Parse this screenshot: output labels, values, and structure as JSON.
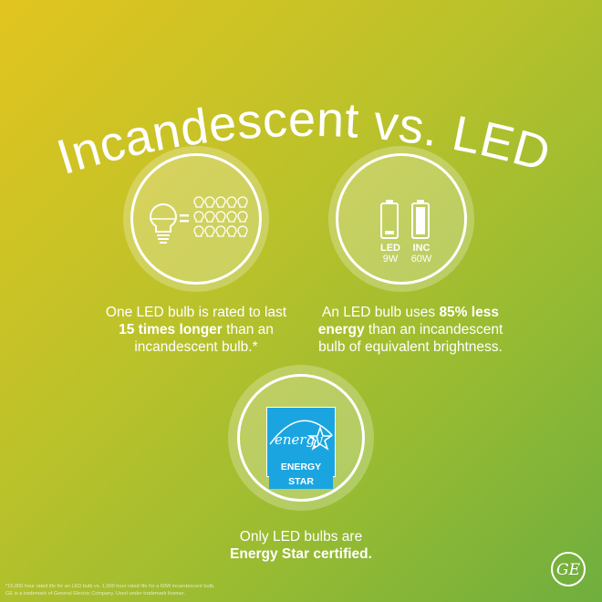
{
  "title": "Incandescent vs. LED",
  "cards": [
    {
      "icon": "bulb-equals-fifteen-bulbs-icon",
      "caption_pre": "One LED bulb is rated to last",
      "caption_bold": "15 times longer",
      "caption_post": " than an",
      "caption_line3": "incandescent bulb.*"
    },
    {
      "icon": "battery-comparison-icon",
      "led_label": "LED",
      "led_watt": "9W",
      "inc_label": "INC",
      "inc_watt": "60W",
      "caption_pre": "An LED bulb uses ",
      "caption_bold": "85% less",
      "caption_bold2": "energy",
      "caption_post": " than an incandescent",
      "caption_line3": "bulb of equivalent brightness."
    },
    {
      "icon": "energy-star-logo",
      "logo_script": "energy",
      "logo_text": "ENERGY STAR",
      "caption_line1": "Only LED bulbs are",
      "caption_bold": "Energy Star certified."
    }
  ],
  "footnotes": [
    "*15,000 hour rated life for an LED bulb vs. 1,000 hour rated life for a 60W incandescent bulb.",
    "GE is a trademark of General Electric Company. Used under trademark license."
  ],
  "brand_logo": "GE",
  "colors": {
    "energy_star_blue": "#1ba5e0",
    "bg_start": "#e2c41f",
    "bg_end": "#6fae3e"
  }
}
